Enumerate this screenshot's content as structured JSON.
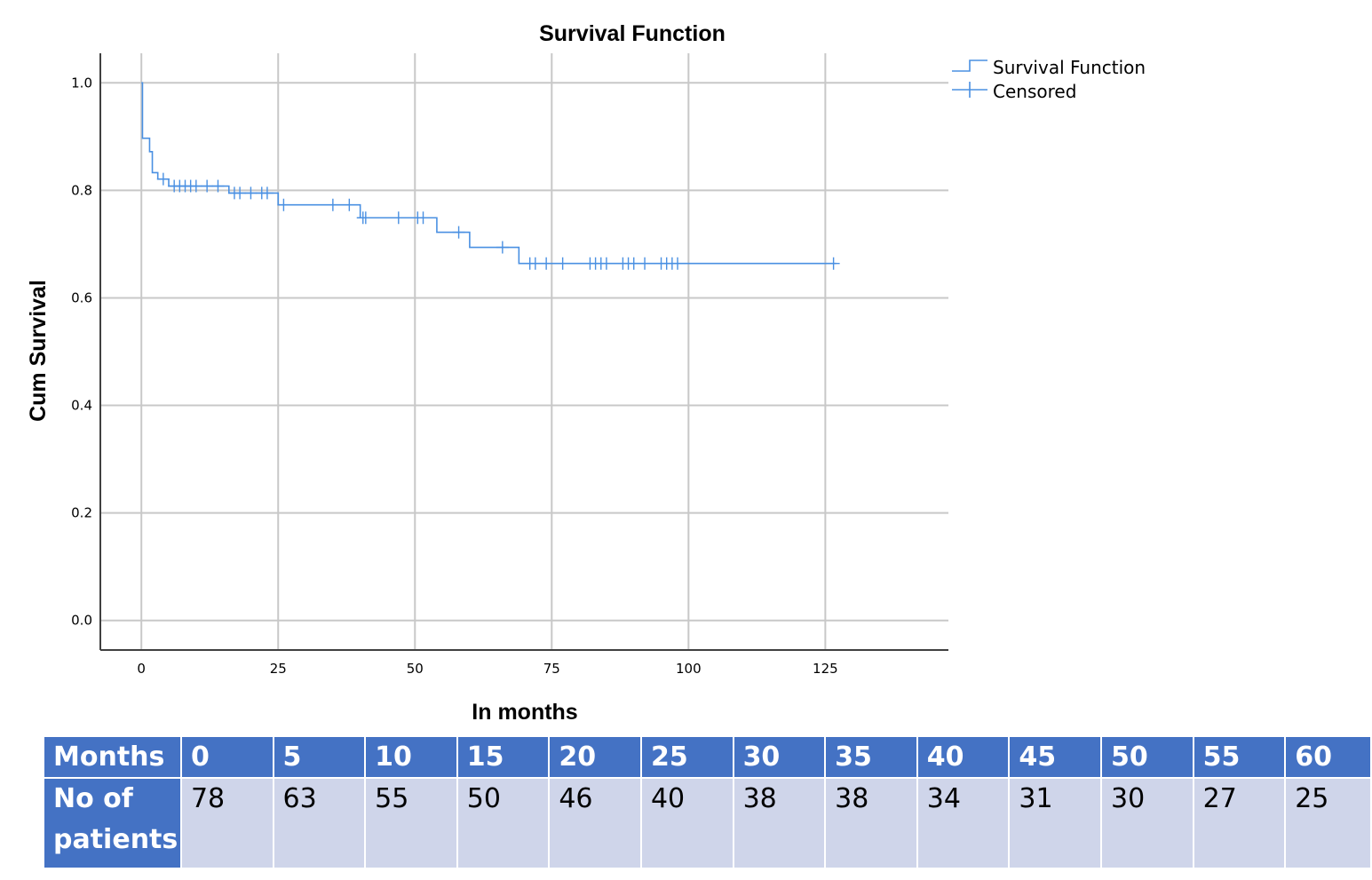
{
  "chart_data": {
    "type": "line",
    "title": "Survival Function",
    "xlabel": "In months",
    "ylabel": "Cum Survival",
    "xlim": [
      -7.5,
      147.5
    ],
    "ylim": [
      -0.055,
      1.055
    ],
    "x_ticks": [
      0,
      25,
      50,
      75,
      100,
      125
    ],
    "y_ticks": [
      0.0,
      0.2,
      0.4,
      0.6,
      0.8,
      1.0
    ],
    "x_tick_labels": [
      "0",
      "25",
      "50",
      "75",
      "100",
      "125"
    ],
    "y_tick_labels": [
      "0.0",
      "0.2",
      "0.4",
      "0.6",
      "0.8",
      "1.0"
    ],
    "grid": true,
    "legend_position": "top-right",
    "line_color": "#4a90e2",
    "series": [
      {
        "name": "Survival Function",
        "kind": "step",
        "x": [
          0,
          0.2,
          1.5,
          2.0,
          3.0,
          5.0,
          16.0,
          25.0,
          40.0,
          54.0,
          60.0,
          69.0,
          127.0
        ],
        "y": [
          1.0,
          0.897,
          0.872,
          0.833,
          0.821,
          0.808,
          0.795,
          0.773,
          0.749,
          0.722,
          0.694,
          0.664,
          0.664
        ]
      },
      {
        "name": "Censored",
        "kind": "marker",
        "x": [
          4,
          6,
          7,
          8,
          9,
          10,
          12,
          14,
          17,
          18,
          20,
          22,
          23,
          26,
          35,
          38,
          40.5,
          41,
          47,
          50.5,
          51.5,
          58,
          66,
          71,
          72,
          74,
          77,
          82,
          83,
          84,
          85,
          88,
          89,
          90,
          92,
          95,
          96,
          97,
          98,
          126.5
        ],
        "y": [
          0.821,
          0.808,
          0.808,
          0.808,
          0.808,
          0.808,
          0.808,
          0.808,
          0.795,
          0.795,
          0.795,
          0.795,
          0.795,
          0.773,
          0.773,
          0.773,
          0.749,
          0.749,
          0.749,
          0.749,
          0.749,
          0.722,
          0.694,
          0.664,
          0.664,
          0.664,
          0.664,
          0.664,
          0.664,
          0.664,
          0.664,
          0.664,
          0.664,
          0.664,
          0.664,
          0.664,
          0.664,
          0.664,
          0.664,
          0.664
        ]
      }
    ]
  },
  "risk_table": {
    "header_label": "Months",
    "row_label": "No of patients",
    "months": [
      "0",
      "5",
      "10",
      "15",
      "20",
      "25",
      "30",
      "35",
      "40",
      "45",
      "50",
      "55",
      "60"
    ],
    "patients": [
      "78",
      "63",
      "55",
      "50",
      "46",
      "40",
      "38",
      "38",
      "34",
      "31",
      "30",
      "27",
      "25"
    ],
    "header_color": "#4472c4",
    "cell_color": "#cfd5ea"
  }
}
